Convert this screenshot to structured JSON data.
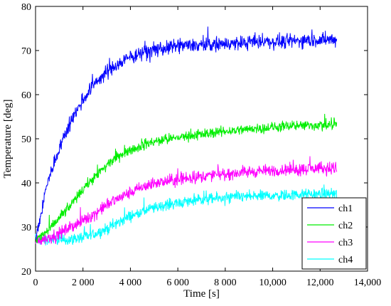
{
  "chart_data": {
    "type": "line",
    "xlabel": "Time [s]",
    "ylabel": "Temperature [deg]",
    "xlim": [
      0,
      14000
    ],
    "ylim": [
      20,
      80
    ],
    "x_ticks": [
      0,
      2000,
      4000,
      6000,
      8000,
      10000,
      12000,
      14000
    ],
    "x_tick_labels": [
      "0",
      "2 000",
      "4 000",
      "6 000",
      "8 000",
      "10,000",
      "12,000",
      "14,000"
    ],
    "y_ticks": [
      20,
      30,
      40,
      50,
      60,
      70,
      80
    ],
    "y_tick_labels": [
      "20",
      "30",
      "40",
      "50",
      "60",
      "70",
      "80"
    ],
    "grid": false,
    "legend_position": "bottom-right",
    "x": [
      0,
      500,
      1000,
      1500,
      2000,
      2500,
      3000,
      3500,
      4000,
      4500,
      5000,
      5500,
      6000,
      7000,
      8000,
      9000,
      10000,
      11000,
      12000,
      12700
    ],
    "series": [
      {
        "name": "ch1",
        "color": "#0000ff",
        "noise": 1.4,
        "values": [
          27,
          40,
          48,
          54,
          59,
          62.5,
          65,
          67,
          68.5,
          69.5,
          70,
          70.5,
          71,
          71.3,
          71.5,
          71.8,
          72,
          72.2,
          72.4,
          72.5
        ]
      },
      {
        "name": "ch2",
        "color": "#00ee00",
        "noise": 1.0,
        "values": [
          27,
          29,
          32,
          35,
          38.5,
          41.5,
          44,
          46,
          47.5,
          48.5,
          49.3,
          49.8,
          50.3,
          51,
          51.7,
          52.2,
          52.6,
          52.9,
          53.1,
          53.2
        ]
      },
      {
        "name": "ch3",
        "color": "#ff00ff",
        "noise": 1.2,
        "values": [
          27,
          27.5,
          28.5,
          30,
          31.5,
          33,
          35,
          36.5,
          37.8,
          39,
          39.8,
          40.3,
          40.8,
          41.5,
          42,
          42.5,
          42.8,
          43.1,
          43.3,
          43.4
        ]
      },
      {
        "name": "ch4",
        "color": "#00ffff",
        "noise": 1.1,
        "values": [
          27,
          27,
          27,
          27.2,
          27.6,
          28.5,
          29.5,
          31,
          32.5,
          33.5,
          34.3,
          35,
          35.5,
          36.2,
          36.6,
          36.9,
          37.1,
          37.3,
          37.5,
          37.6
        ]
      }
    ]
  }
}
